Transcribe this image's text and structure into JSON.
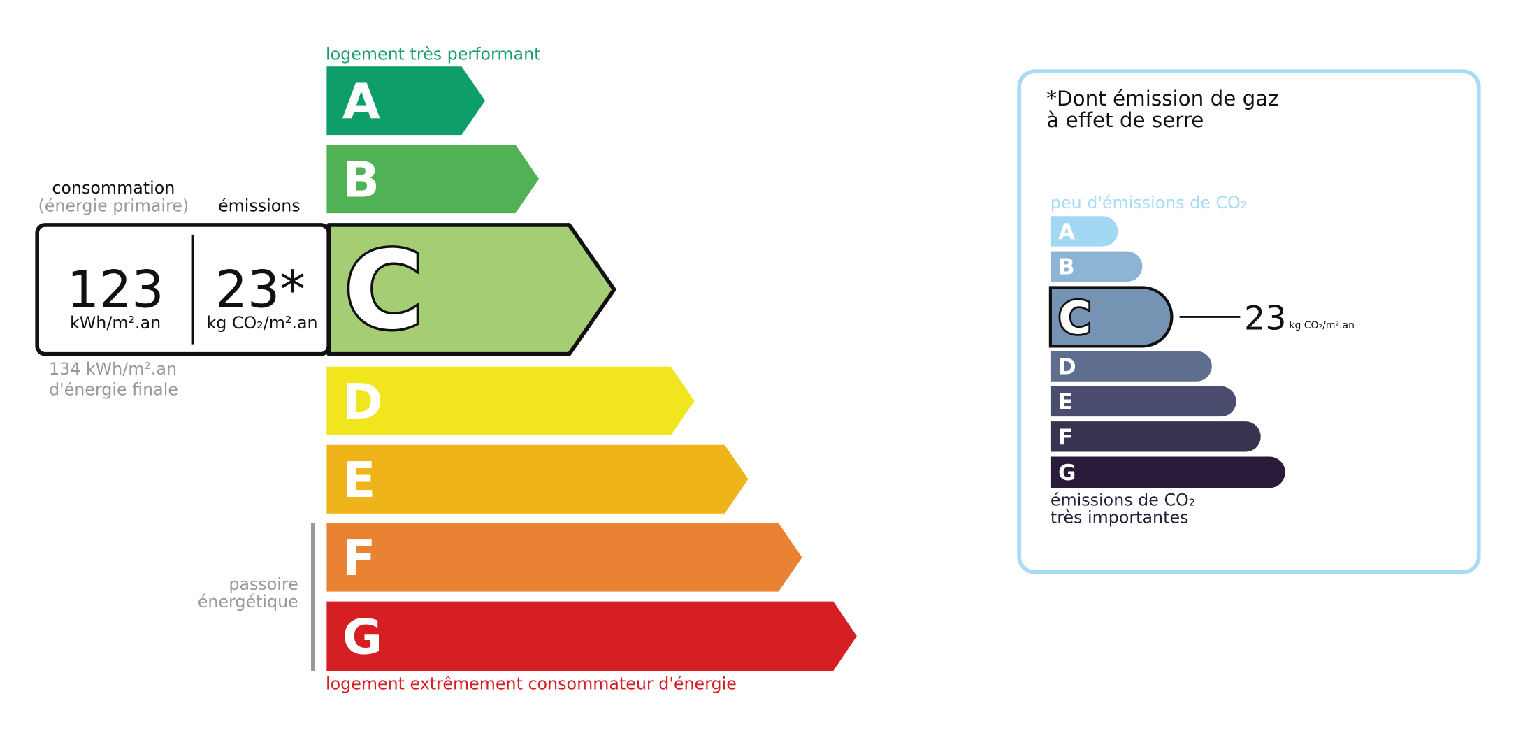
{
  "energy": {
    "top_label": "logement très performant",
    "bottom_label": "logement extrêmement consommateur d'énergie",
    "passoire_lines": [
      "passoire",
      "énergétique"
    ],
    "classes": [
      {
        "letter": "A",
        "color": "#0d9e6a"
      },
      {
        "letter": "B",
        "color": "#50b155"
      },
      {
        "letter": "C",
        "color": "#a5cd74"
      },
      {
        "letter": "D",
        "color": "#f1e51e"
      },
      {
        "letter": "E",
        "color": "#efb41a"
      },
      {
        "letter": "F",
        "color": "#ea8234"
      },
      {
        "letter": "G",
        "color": "#d61f22"
      }
    ],
    "current_class": "C",
    "consumption_label": "consommation",
    "consumption_sublabel": "(énergie primaire)",
    "emissions_label": "émissions",
    "consumption_value": "123",
    "consumption_unit": "kWh/m².an",
    "emissions_value": "23*",
    "emissions_unit": "kg CO₂/m².an",
    "final_energy_lines": [
      "134 kWh/m².an",
      "d'énergie finale"
    ]
  },
  "emissions": {
    "title_lines": [
      "*Dont émission de gaz",
      "à effet de serre"
    ],
    "top_label": "peu d'émissions de CO₂",
    "bottom_lines": [
      "émissions de CO₂",
      "très importantes"
    ],
    "classes": [
      {
        "letter": "A",
        "color": "#a3d8f4"
      },
      {
        "letter": "B",
        "color": "#8db4d4"
      },
      {
        "letter": "C",
        "color": "#7594b4"
      },
      {
        "letter": "D",
        "color": "#5f6d8e"
      },
      {
        "letter": "E",
        "color": "#4b4d6e"
      },
      {
        "letter": "F",
        "color": "#363451"
      },
      {
        "letter": "G",
        "color": "#281c3a"
      }
    ],
    "current_class": "C",
    "value": "23",
    "unit": "kg CO₂/m².an"
  }
}
